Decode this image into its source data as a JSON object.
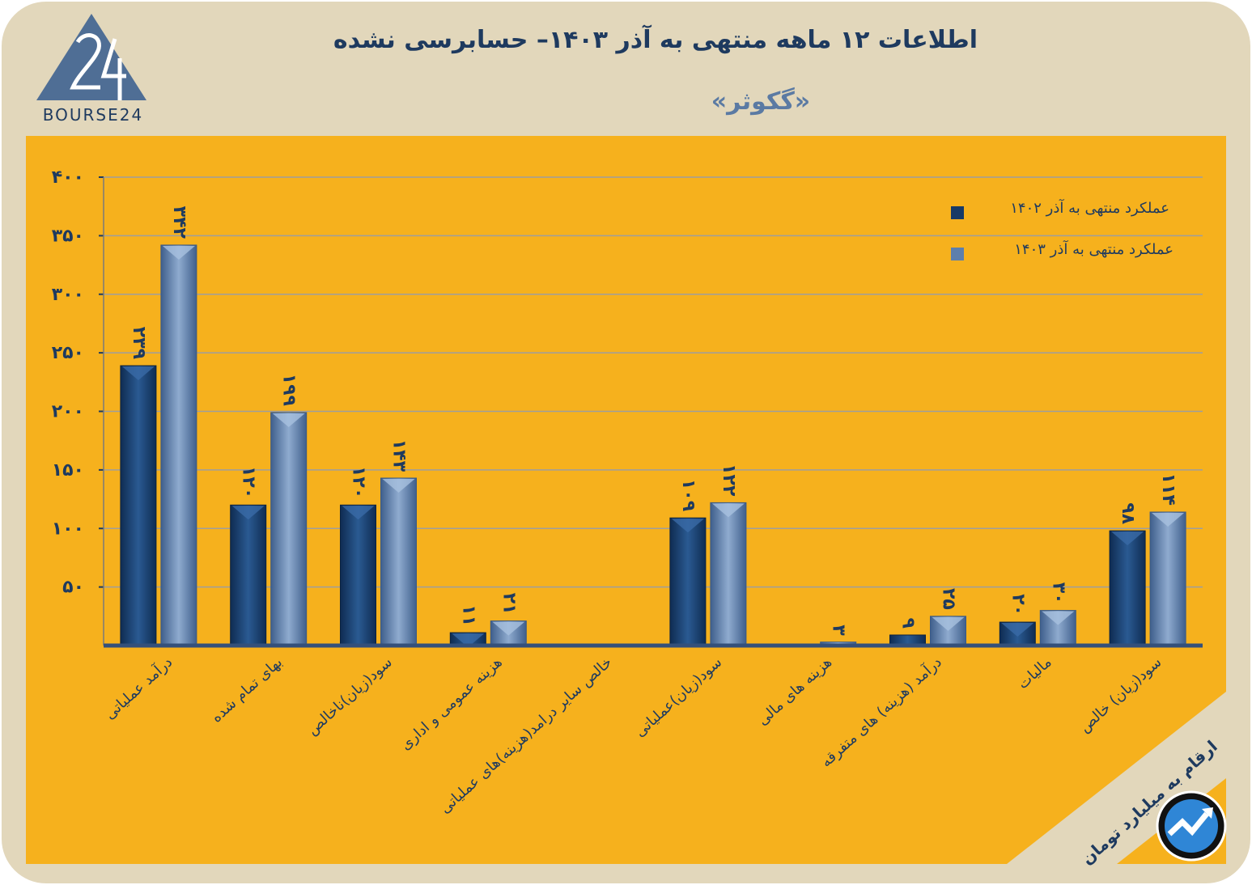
{
  "header": {
    "title": "اطلاعات ۱۲ ماهه منتهی به آذر  ۱۴۰۳– حسابرسی نشده",
    "subtitle": "«گکوثر»",
    "logo_text": "BOURSE24",
    "units_note": "ارقام به میلیارد تومان"
  },
  "colors": {
    "frame": "#e2d7bb",
    "panel": "#f6b11d",
    "series_1402": "#173a66",
    "series_1403": "#5d7fac",
    "grid": "#9e9e9e",
    "text": "#1e3a5f"
  },
  "chart_data": {
    "type": "bar",
    "ylim": [
      0,
      400
    ],
    "yticks": [
      50,
      100,
      150,
      200,
      250,
      300,
      350,
      400
    ],
    "ytick_labels": [
      "۵۰",
      "۱۰۰",
      "۱۵۰",
      "۲۰۰",
      "۲۵۰",
      "۳۰۰",
      "۳۵۰",
      "۴۰۰"
    ],
    "grid": true,
    "legend_position": "top-right",
    "categories": [
      "درآمد عملیاتی",
      "بهای تمام شده",
      "سود(زیان)ناخالص",
      "هزینه عمومی و اداری",
      "خالص سایر درامد(هزینه)های عملیاتی",
      "سود(زیان)عملیاتی",
      "هزینه های مالی",
      "درآمد (هزینه) های متفرقه",
      "مالیات",
      "سود(زیان) خالص"
    ],
    "series": [
      {
        "name": "عملکرد منتهی به آذر ۱۴۰۲",
        "values": [
          239,
          120,
          120,
          11,
          null,
          109,
          null,
          9,
          20,
          98
        ],
        "labels": [
          "۲۳۹",
          "۱۲۰",
          "۱۲۰",
          "۱۱",
          "",
          "۱۰۹",
          "",
          "۹",
          "۲۰",
          "۹۸"
        ]
      },
      {
        "name": "عملکرد منتهی به آذر ۱۴۰۳",
        "values": [
          342,
          199,
          143,
          21,
          null,
          122,
          3,
          25,
          30,
          114
        ],
        "labels": [
          "۳۴۲",
          "۱۹۹",
          "۱۴۳",
          "۲۱",
          "",
          "۱۲۲",
          "۳",
          "۲۵",
          "۳۰",
          "۱۱۴"
        ]
      }
    ]
  }
}
